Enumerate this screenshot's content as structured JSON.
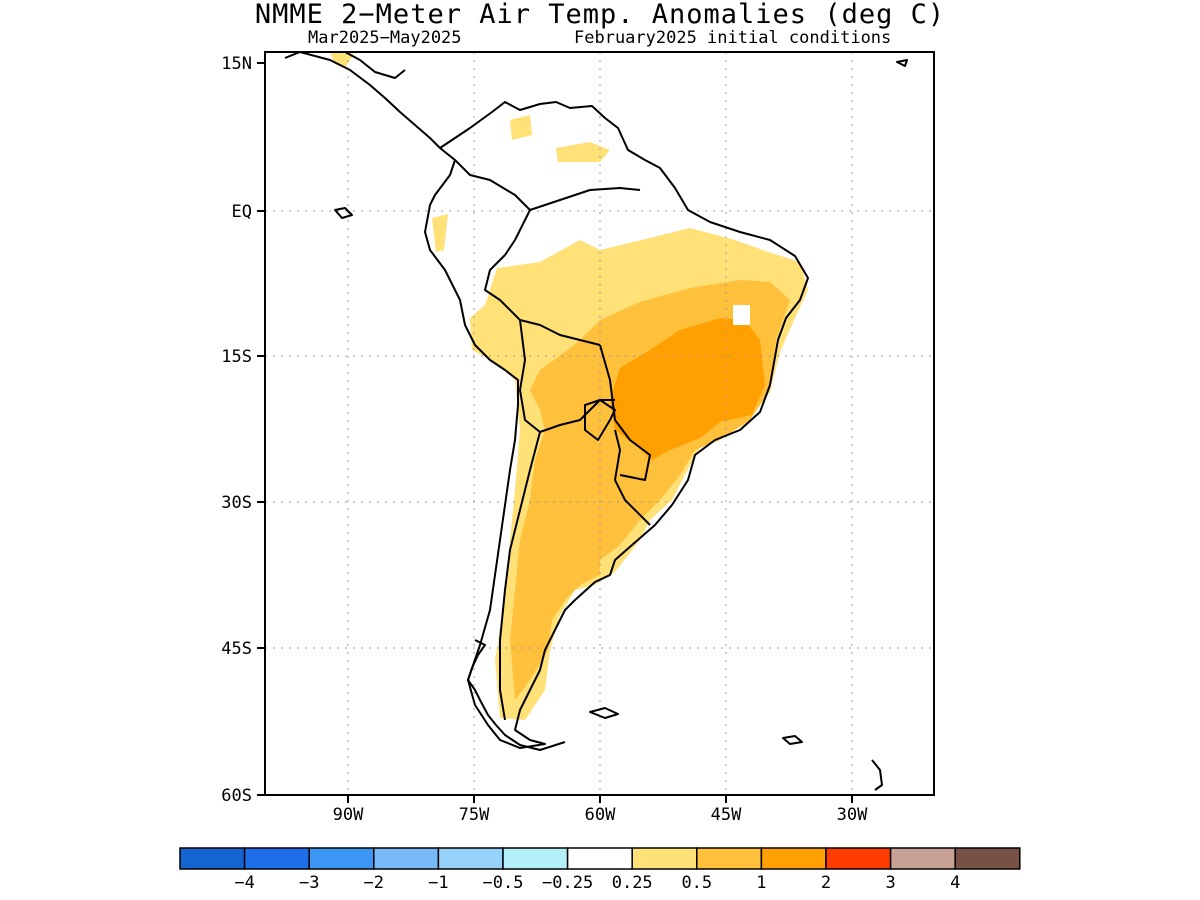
{
  "title": "NMME 2−Meter Air Temp. Anomalies (deg C)",
  "period": "Mar2025−May2025",
  "init": "February2025 initial conditions",
  "lat_labels": [
    "15N",
    "EQ",
    "15S",
    "30S",
    "45S",
    "60S"
  ],
  "lon_labels": [
    "90W",
    "75W",
    "60W",
    "45W",
    "30W"
  ],
  "colorbar": {
    "colors": [
      "#1464d2",
      "#1e6eeb",
      "#3c96f5",
      "#78b9fa",
      "#96d2fa",
      "#b4f0fa",
      "#ffffff",
      "#ffe178",
      "#ffc03c",
      "#ffa000",
      "#ff3c00",
      "#c8a096",
      "#785046"
    ],
    "labels": [
      "−4",
      "−3",
      "−2",
      "−1",
      "−0.5",
      "−0.25",
      "0.25",
      "0.5",
      "1",
      "2",
      "3",
      "4"
    ]
  },
  "map": {
    "lon_range": [
      -100,
      -20
    ],
    "lat_range": [
      -60,
      15
    ],
    "grid": "dotted 15 degree"
  }
}
